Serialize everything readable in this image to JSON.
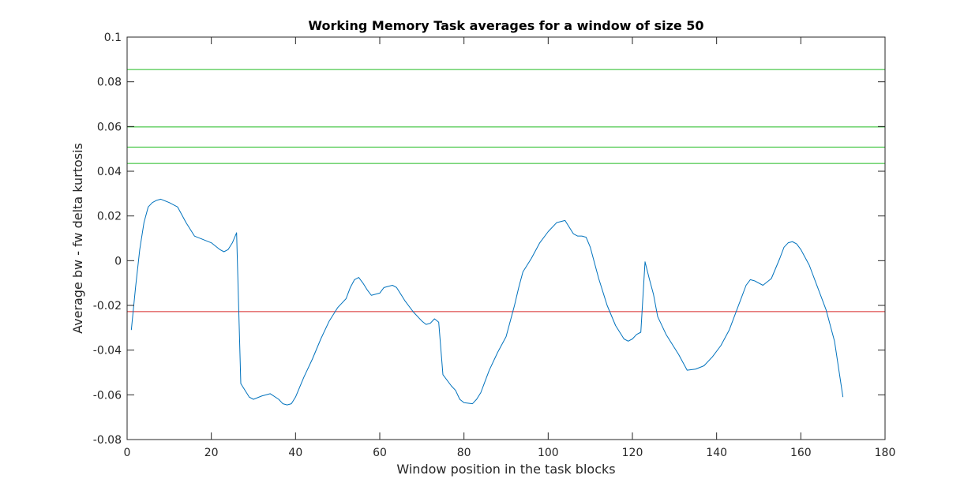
{
  "chart_data": {
    "type": "line",
    "title": "Working Memory Task averages for a window of size 50",
    "xlabel": "Window position in the task blocks",
    "ylabel": "Average bw - fw delta kurtosis",
    "xlim": [
      0,
      180
    ],
    "ylim": [
      -0.08,
      0.1
    ],
    "xticks": [
      0,
      20,
      40,
      60,
      80,
      100,
      120,
      140,
      160,
      180
    ],
    "xtick_labels": [
      "0",
      "20",
      "40",
      "60",
      "80",
      "100",
      "120",
      "140",
      "160",
      "180"
    ],
    "yticks": [
      -0.08,
      -0.06,
      -0.04,
      -0.02,
      0,
      0.02,
      0.04,
      0.06,
      0.08,
      0.1
    ],
    "ytick_labels": [
      "-0.08",
      "-0.06",
      "-0.04",
      "-0.02",
      "0",
      "0.02",
      "0.04",
      "0.06",
      "0.08",
      "0.1"
    ],
    "grid": false,
    "series": [
      {
        "color": "#0072BD",
        "x": [
          1,
          2,
          3,
          4,
          5,
          6,
          7,
          8,
          10,
          12,
          14,
          16,
          18,
          20,
          22,
          23,
          24,
          25,
          26,
          27,
          29,
          30,
          32,
          34,
          36,
          37,
          38,
          39,
          40,
          42,
          44,
          46,
          48,
          50,
          52,
          53,
          54,
          55,
          56,
          57,
          58,
          60,
          61,
          63,
          64,
          66,
          68,
          70,
          71,
          72,
          73,
          74,
          75,
          77,
          78,
          79,
          80,
          82,
          83,
          84,
          85,
          86,
          88,
          90,
          92,
          93,
          94,
          96,
          98,
          100,
          102,
          103,
          104,
          105,
          106,
          107,
          108,
          109,
          110,
          112,
          114,
          116,
          118,
          119,
          120,
          121,
          122,
          123,
          124,
          125,
          126,
          128,
          130,
          131,
          132,
          133,
          135,
          137,
          139,
          141,
          143,
          145,
          146,
          147,
          148,
          149,
          151,
          153,
          155,
          156,
          157,
          158,
          159,
          160,
          162,
          164,
          166,
          168,
          170
        ],
        "y": [
          -0.031,
          -0.012,
          0.005,
          0.017,
          0.024,
          0.026,
          0.027,
          0.0275,
          0.026,
          0.024,
          0.017,
          0.011,
          0.0095,
          0.008,
          0.005,
          0.004,
          0.005,
          0.008,
          0.0125,
          -0.055,
          -0.061,
          -0.062,
          -0.0605,
          -0.0595,
          -0.062,
          -0.064,
          -0.0645,
          -0.064,
          -0.061,
          -0.052,
          -0.044,
          -0.035,
          -0.027,
          -0.021,
          -0.017,
          -0.012,
          -0.0085,
          -0.0075,
          -0.01,
          -0.013,
          -0.0155,
          -0.0145,
          -0.012,
          -0.011,
          -0.012,
          -0.018,
          -0.023,
          -0.027,
          -0.0285,
          -0.028,
          -0.026,
          -0.0275,
          -0.051,
          -0.056,
          -0.058,
          -0.062,
          -0.0635,
          -0.064,
          -0.062,
          -0.059,
          -0.054,
          -0.049,
          -0.041,
          -0.034,
          -0.02,
          -0.012,
          -0.005,
          0.001,
          0.008,
          0.013,
          0.017,
          0.0175,
          0.018,
          0.015,
          0.012,
          0.011,
          0.011,
          0.0105,
          0.006,
          -0.008,
          -0.02,
          -0.029,
          -0.035,
          -0.036,
          -0.035,
          -0.033,
          -0.032,
          -0.0005,
          -0.008,
          -0.015,
          -0.025,
          -0.033,
          -0.039,
          -0.042,
          -0.0455,
          -0.049,
          -0.0485,
          -0.047,
          -0.043,
          -0.038,
          -0.031,
          -0.021,
          -0.016,
          -0.011,
          -0.0085,
          -0.009,
          -0.011,
          -0.008,
          0.001,
          0.006,
          0.008,
          0.0085,
          0.0075,
          0.005,
          -0.002,
          -0.012,
          -0.022,
          -0.036,
          -0.061
        ]
      }
    ],
    "hlines": [
      {
        "y": 0.0855,
        "color": "#22BB22"
      },
      {
        "y": 0.0598,
        "color": "#22BB22"
      },
      {
        "y": 0.0508,
        "color": "#22BB22"
      },
      {
        "y": 0.0435,
        "color": "#22BB22"
      },
      {
        "y": -0.0228,
        "color": "#D62728"
      }
    ]
  }
}
